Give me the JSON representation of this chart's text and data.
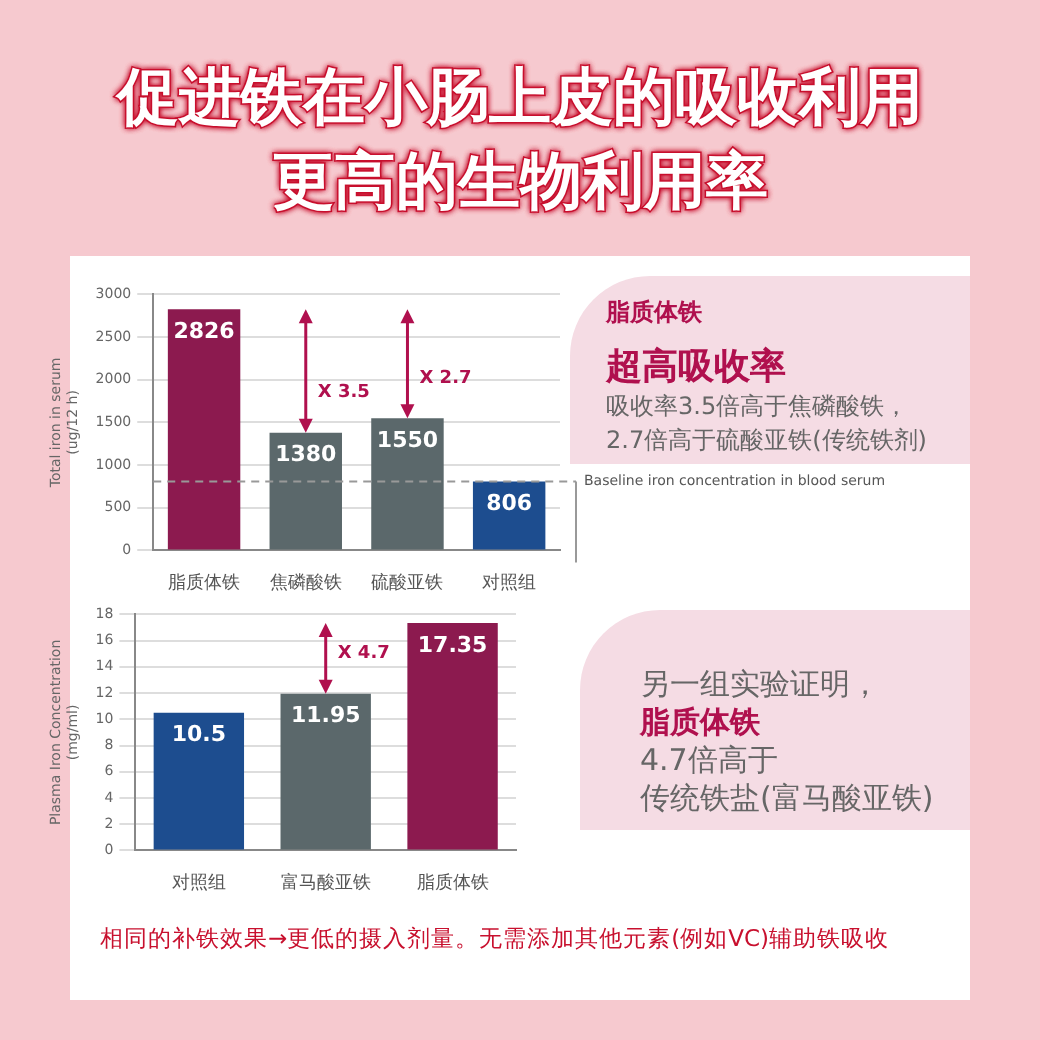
{
  "chart_data": [
    {
      "type": "bar",
      "title": "促进铁在小肠上皮的吸收利用更高的生物利用率",
      "ylabel": "Total iron in serum (ug/12 h)",
      "categories": [
        "脂质体铁",
        "焦磷酸铁",
        "硫酸亚铁",
        "对照组"
      ],
      "values": [
        2826,
        1380,
        1550,
        806
      ],
      "colors": [
        "#8c1a4f",
        "#5b686b",
        "#5b686b",
        "#1d4d8f"
      ],
      "ylim": [
        0,
        3000
      ],
      "yticks": [
        0,
        500,
        1000,
        1500,
        2000,
        2500,
        3000
      ],
      "grid": "y",
      "data_labels": true,
      "legend": false,
      "ref_lines": [
        {
          "axis": "y",
          "value": 806,
          "label": "Baseline iron concentration in blood serum",
          "color": "#999999",
          "line_style": "dashed"
        }
      ],
      "annotations": [
        {
          "text": "X 3.5",
          "x": "焦磷酸铁",
          "y": 1380
        },
        {
          "text": "X 2.7",
          "x": "硫酸亚铁",
          "y": 1550
        },
        "脂质体铁",
        "超高吸收率",
        "吸收率3.5倍高于焦磷酸铁，",
        "2.7倍高于硫酸亚铁(传统铁剂)"
      ]
    },
    {
      "type": "bar",
      "ylabel": "Plasma Iron Concentration (mg/ml)",
      "categories": [
        "对照组",
        "富马酸亚铁",
        "脂质体铁"
      ],
      "values": [
        10.5,
        11.95,
        17.35
      ],
      "colors": [
        "#1d4d8f",
        "#5b686b",
        "#8c1a4f"
      ],
      "ylim": [
        0,
        18
      ],
      "yticks": [
        0,
        2,
        4,
        6,
        8,
        10,
        12,
        14,
        16,
        18
      ],
      "grid": "y",
      "data_labels": true,
      "legend": false,
      "annotations": [
        {
          "text": "X 4.7",
          "x": "富马酸亚铁",
          "y": 11.95
        },
        "另一组实验证明，",
        "脂质体铁",
        "4.7倍高于",
        "传统铁盐(富马酸亚铁)",
        "相同的补铁效果→更低的摄入剂量。无需添加其他元素(例如VC)辅助铁吸收"
      ]
    }
  ]
}
